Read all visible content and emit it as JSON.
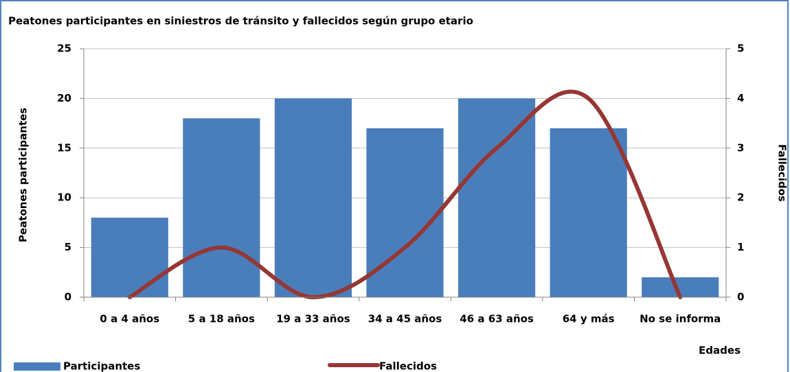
{
  "chart_data": {
    "type": "bar_line",
    "title": "Peatones participantes en siniestros de tránsito y fallecidos según grupo etario",
    "y_label": "Peatones participantes",
    "y2_label": "Fallecidos",
    "x_label": "Edades",
    "categories": [
      "0 a 4 años",
      "5 a 18 años",
      "19 a 33 años",
      "34 a 45 años",
      "46 a 63 años",
      "64 y más",
      "No se informa"
    ],
    "series": [
      {
        "name": "Participantes",
        "type": "bar",
        "color": "#4a7ebb",
        "values": [
          8,
          18,
          20,
          17,
          20,
          17,
          2
        ]
      },
      {
        "name": "Fallecidos",
        "type": "line",
        "axis": "y2",
        "color": "#953735",
        "values": [
          0,
          1,
          0,
          1,
          3,
          4,
          0
        ]
      }
    ],
    "ylim": [
      0,
      25
    ],
    "yticks": [
      0,
      5,
      10,
      15,
      20,
      25
    ],
    "y2lim": [
      0,
      5
    ],
    "y2ticks": [
      0,
      1,
      2,
      3,
      4,
      5
    ],
    "grid": true
  }
}
